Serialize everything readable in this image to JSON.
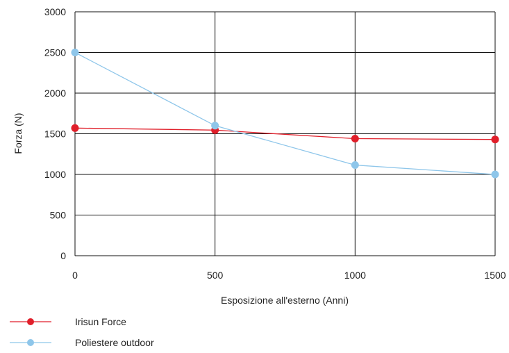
{
  "chart_data": {
    "type": "line",
    "x": [
      0,
      500,
      1000,
      1500
    ],
    "xlabel": "Esposizione all'esterno (Anni)",
    "ylabel": "Forza (N)",
    "xlim": [
      0,
      1500
    ],
    "ylim": [
      0,
      3000
    ],
    "x_ticks": [
      "0",
      "500",
      "1000",
      "1500"
    ],
    "y_ticks": [
      "0",
      "500",
      "1000",
      "1500",
      "2000",
      "2500",
      "3000"
    ],
    "grid": true,
    "legend_position": "bottom-left",
    "series": [
      {
        "name": "Irisun Force",
        "color": "#e01f2a",
        "values": [
          1570,
          1545,
          1440,
          1430
        ]
      },
      {
        "name": "Poliestere outdoor",
        "color": "#8ec6ea",
        "values": [
          2500,
          1600,
          1115,
          1000
        ]
      }
    ]
  }
}
